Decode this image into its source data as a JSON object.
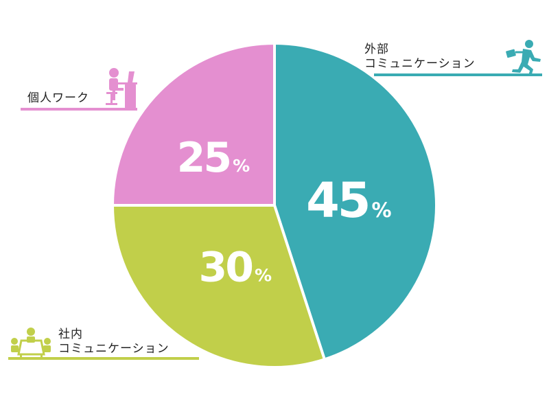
{
  "chart_data": {
    "type": "pie",
    "categories": [
      "外部コミュニケーション",
      "社内コミュニケーション",
      "個人ワーク"
    ],
    "values": [
      45,
      30,
      25
    ],
    "unit": "%",
    "colors": [
      "#3aabb3",
      "#c1cf4a",
      "#e48fd0"
    ],
    "value_labels": [
      "45",
      "30",
      "25"
    ],
    "legend": "none"
  },
  "labels": {
    "external": {
      "line1": "外部",
      "line2": "コミュニケーション",
      "icon": "running-businessman-icon"
    },
    "internal": {
      "line1": "社内",
      "line2": "コミュニケーション",
      "icon": "meeting-table-icon"
    },
    "personal": {
      "line1": "個人ワーク",
      "icon": "desk-worker-icon"
    }
  }
}
